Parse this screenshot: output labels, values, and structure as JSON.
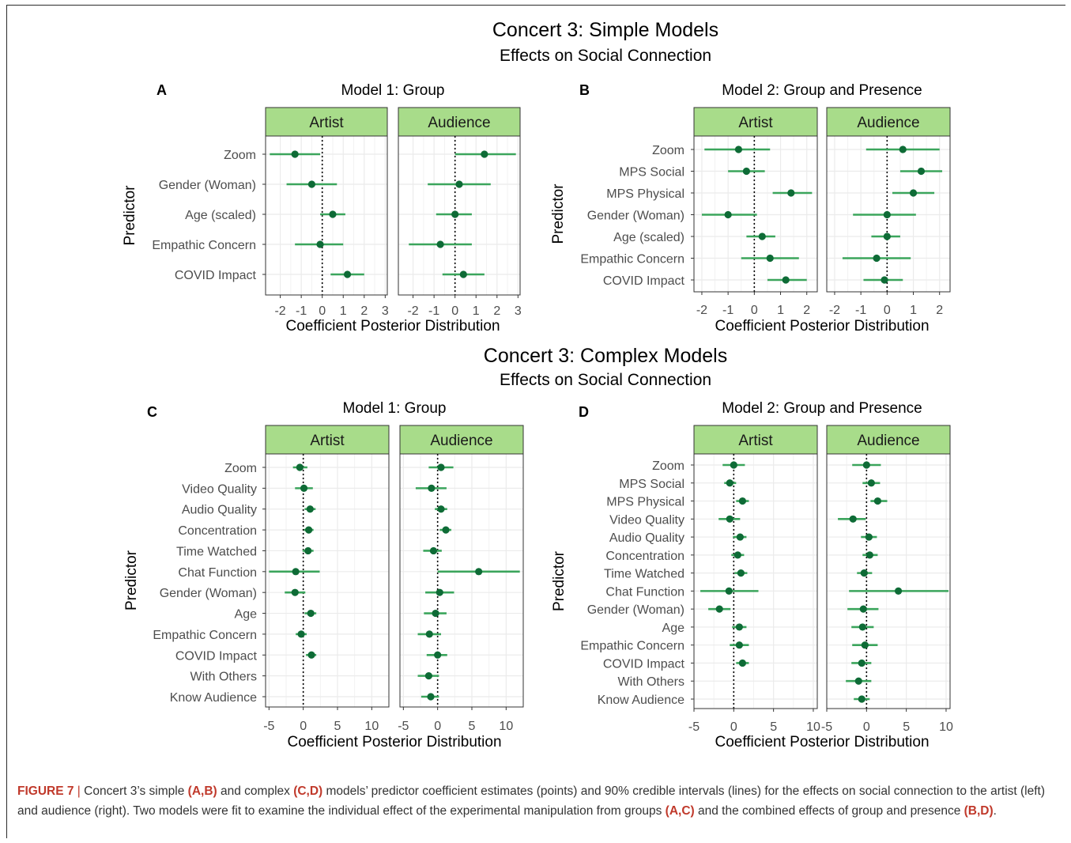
{
  "colors": {
    "strip": "#a8dc8a",
    "interval": "#3ba55c",
    "point": "#0e6b36",
    "panel_border": "#333333",
    "grid": "#ebebeb",
    "caption_accent": "#c0392b"
  },
  "sections": [
    {
      "title": "Concert 3: Simple Models",
      "subtitle": "Effects on Social Connection"
    },
    {
      "title": "Concert 3: Complex Models",
      "subtitle": "Effects on Social Connection"
    }
  ],
  "chart_data": [
    {
      "type": "forest",
      "panel_label": "A",
      "title": "Model 1: Group",
      "xlabel": "Coefficient Posterior Distribution",
      "ylabel": "Predictor",
      "xlim": [
        -2.7,
        3.1
      ],
      "xticks": [
        -2,
        -1,
        0,
        1,
        2,
        3
      ],
      "xtick_labels": [
        "-2",
        "-1",
        "0",
        "1",
        "2",
        "3"
      ],
      "predictors": [
        "Zoom",
        "Gender (Woman)",
        "Age (scaled)",
        "Empathic Concern",
        "COVID Impact"
      ],
      "facets": [
        {
          "name": "Artist",
          "estimates": [
            -1.3,
            -0.5,
            0.5,
            -0.1,
            1.2
          ],
          "lower": [
            -2.5,
            -1.7,
            -0.1,
            -1.3,
            0.4
          ],
          "upper": [
            -0.1,
            0.7,
            1.1,
            1.0,
            2.0
          ]
        },
        {
          "name": "Audience",
          "estimates": [
            1.4,
            0.2,
            0.0,
            -0.7,
            0.4
          ],
          "lower": [
            0.0,
            -1.3,
            -0.9,
            -2.2,
            -0.6
          ],
          "upper": [
            2.9,
            1.7,
            0.8,
            0.8,
            1.4
          ]
        }
      ]
    },
    {
      "type": "forest",
      "panel_label": "B",
      "title": "Model 2: Group and Presence",
      "xlabel": "Coefficient Posterior Distribution",
      "ylabel": "Predictor",
      "xlim": [
        -2.3,
        2.4
      ],
      "xticks": [
        -2,
        -1,
        0,
        1,
        2
      ],
      "xtick_labels": [
        "-2",
        "-1",
        "0",
        "1",
        "2"
      ],
      "predictors": [
        "Zoom",
        "MPS Social",
        "MPS Physical",
        "Gender (Woman)",
        "Age (scaled)",
        "Empathic Concern",
        "COVID Impact"
      ],
      "facets": [
        {
          "name": "Artist",
          "estimates": [
            -0.6,
            -0.3,
            1.4,
            -1.0,
            0.3,
            0.6,
            1.2
          ],
          "lower": [
            -1.9,
            -1.0,
            0.7,
            -2.0,
            -0.3,
            -0.5,
            0.5
          ],
          "upper": [
            0.6,
            0.4,
            2.2,
            0.1,
            0.8,
            1.7,
            2.0
          ]
        },
        {
          "name": "Audience",
          "estimates": [
            0.6,
            1.3,
            1.0,
            0.0,
            0.0,
            -0.4,
            -0.1
          ],
          "lower": [
            -0.8,
            0.5,
            0.2,
            -1.3,
            -0.6,
            -1.7,
            -0.9
          ],
          "upper": [
            2.0,
            2.1,
            1.8,
            1.1,
            0.5,
            0.9,
            0.6
          ]
        }
      ]
    },
    {
      "type": "forest",
      "panel_label": "C",
      "title": "Model 1: Group",
      "xlabel": "Coefficient Posterior Distribution",
      "ylabel": "Predictor",
      "xlim": [
        -5.5,
        12.5
      ],
      "xticks": [
        -5,
        0,
        5,
        10
      ],
      "xtick_labels": [
        "-5",
        "0",
        "5",
        "10"
      ],
      "predictors": [
        "Zoom",
        "Video Quality",
        "Audio Quality",
        "Concentration",
        "Time Watched",
        "Chat Function",
        "Gender (Woman)",
        "Age",
        "Empathic Concern",
        "COVID Impact",
        "With Others",
        "Know Audience"
      ],
      "facets": [
        {
          "name": "Artist",
          "estimates": [
            -0.5,
            0.1,
            1.0,
            0.8,
            0.7,
            -1.1,
            -1.2,
            1.1,
            -0.3,
            1.2,
            null,
            null
          ],
          "lower": [
            -1.5,
            -1.2,
            0.2,
            0.1,
            -0.1,
            -5.0,
            -2.7,
            0.2,
            -1.1,
            0.4,
            null,
            null
          ],
          "upper": [
            0.6,
            1.4,
            1.8,
            1.5,
            1.5,
            2.4,
            0.3,
            1.9,
            0.5,
            1.9,
            null,
            null
          ]
        },
        {
          "name": "Audience",
          "estimates": [
            0.5,
            -0.9,
            0.5,
            1.2,
            -0.6,
            6.0,
            0.3,
            -0.3,
            -1.2,
            0.0,
            -1.3,
            -1.0
          ],
          "lower": [
            -1.3,
            -3.2,
            -0.4,
            0.3,
            -2.1,
            0.0,
            -1.8,
            -2.0,
            -2.9,
            -1.6,
            -2.9,
            -2.4
          ],
          "upper": [
            2.3,
            1.3,
            1.4,
            2.0,
            0.6,
            12.0,
            2.4,
            1.3,
            0.5,
            1.4,
            0.2,
            0.2
          ]
        }
      ]
    },
    {
      "type": "forest",
      "panel_label": "D",
      "title": "Model 2: Group and Presence",
      "xlabel": "Coefficient Posterior Distribution",
      "ylabel": "Predictor",
      "xlim": [
        -5.0,
        10.5
      ],
      "xticks": [
        -5,
        0,
        5,
        10
      ],
      "xtick_labels": [
        "-5",
        "0",
        "5",
        "10"
      ],
      "predictors": [
        "Zoom",
        "MPS Social",
        "MPS Physical",
        "Video Quality",
        "Audio Quality",
        "Concentration",
        "Time Watched",
        "Chat Function",
        "Gender (Woman)",
        "Age",
        "Empathic Concern",
        "COVID Impact",
        "With Others",
        "Know Audience"
      ],
      "facets": [
        {
          "name": "Artist",
          "estimates": [
            0.0,
            -0.5,
            1.1,
            -0.5,
            0.8,
            0.5,
            0.9,
            -0.6,
            -1.8,
            0.7,
            0.7,
            1.1,
            null,
            null
          ],
          "lower": [
            -1.4,
            -1.2,
            0.3,
            -1.9,
            -0.1,
            -0.3,
            0.1,
            -4.2,
            -3.2,
            -0.2,
            -0.5,
            0.3,
            null,
            null
          ],
          "upper": [
            1.4,
            0.3,
            1.9,
            0.8,
            1.6,
            1.3,
            1.7,
            3.1,
            -0.4,
            1.6,
            1.9,
            1.9,
            null,
            null
          ]
        },
        {
          "name": "Audience",
          "estimates": [
            0.0,
            0.6,
            1.4,
            -1.7,
            0.3,
            0.4,
            -0.3,
            4.0,
            -0.4,
            -0.5,
            -0.2,
            -0.6,
            -1.0,
            -0.6
          ],
          "lower": [
            -1.8,
            -0.5,
            0.5,
            -3.6,
            -0.7,
            -0.5,
            -1.2,
            -2.2,
            -2.4,
            -1.9,
            -1.8,
            -1.9,
            -2.6,
            -1.6
          ],
          "upper": [
            1.8,
            1.7,
            2.6,
            -0.1,
            1.3,
            1.4,
            0.7,
            10.3,
            1.5,
            0.9,
            1.4,
            0.6,
            0.6,
            0.4
          ]
        }
      ]
    }
  ],
  "caption": {
    "figure_label": "FIGURE 7",
    "separator": "|",
    "t1": " Concert 3’s simple ",
    "b1": "(A,B)",
    "t2": " and complex ",
    "b2": "(C,D)",
    "t3": " models’ predictor coefficient estimates (points) and 90% credible intervals (lines) for the effects on social connection to the artist (left) and audience (right). Two models were fit to examine the individual effect of the experimental manipulation from groups ",
    "b3": "(A,C)",
    "t4": " and the combined effects of group and presence ",
    "b4": "(B,D)",
    "t5": "."
  }
}
